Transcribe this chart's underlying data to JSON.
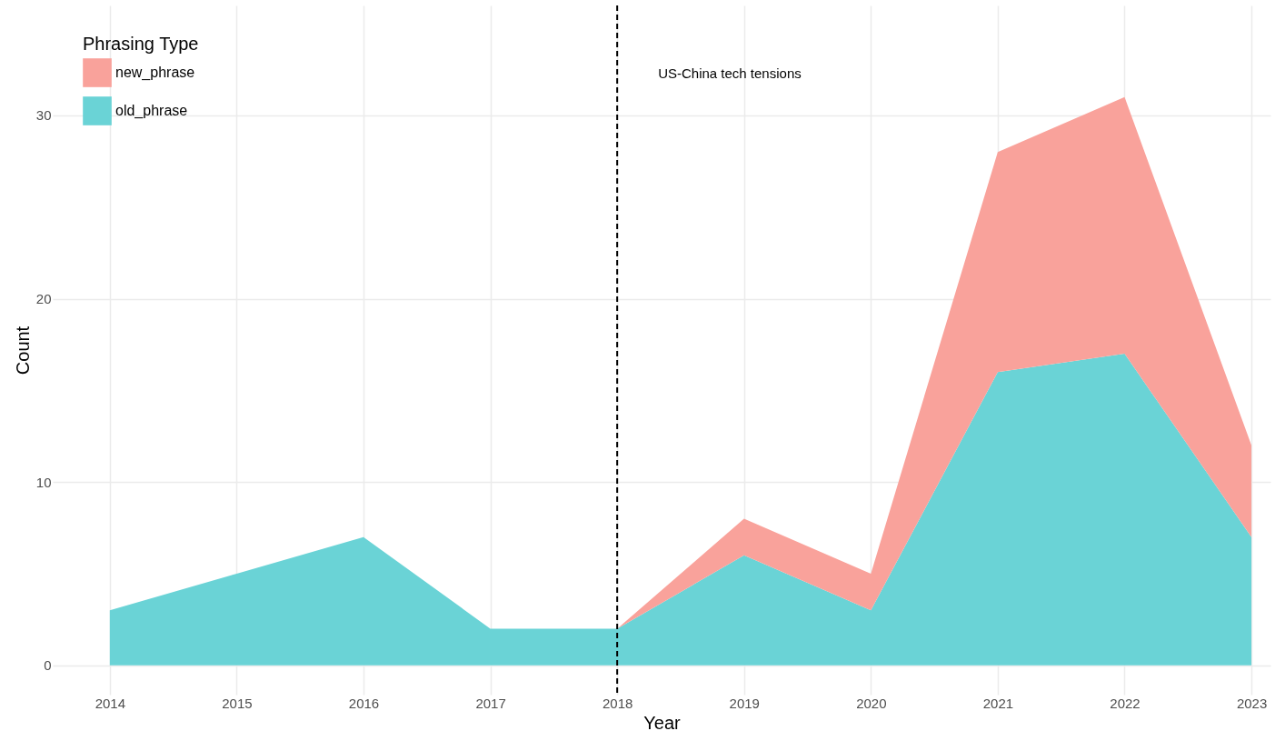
{
  "chart_data": {
    "type": "area",
    "stacked": true,
    "xlabel": "Year",
    "ylabel": "Count",
    "legend_title": "Phrasing Type",
    "x": [
      2014,
      2015,
      2016,
      2017,
      2018,
      2019,
      2020,
      2021,
      2022,
      2023
    ],
    "series": [
      {
        "name": "old_phrase",
        "color": "#6ad3d6",
        "values": [
          3,
          5,
          7,
          2,
          2,
          6,
          3,
          16,
          17,
          7
        ]
      },
      {
        "name": "new_phrase",
        "color": "#f9a29b",
        "values": [
          0,
          0,
          0,
          0,
          0,
          2,
          2,
          12,
          14,
          5
        ]
      }
    ],
    "xlim": [
      2013.55,
      2023.15
    ],
    "xticks": [
      2014,
      2015,
      2016,
      2017,
      2018,
      2019,
      2020,
      2021,
      2022,
      2023
    ],
    "ylim": [
      -1.6,
      36
    ],
    "yticks": [
      0,
      10,
      20,
      30
    ],
    "ref_lines": [
      {
        "axis": "x",
        "value": 2018,
        "line_style": "dashed",
        "color": "#000000",
        "label": "US-China tech tensions"
      }
    ],
    "grid": true,
    "legend": "top left"
  }
}
